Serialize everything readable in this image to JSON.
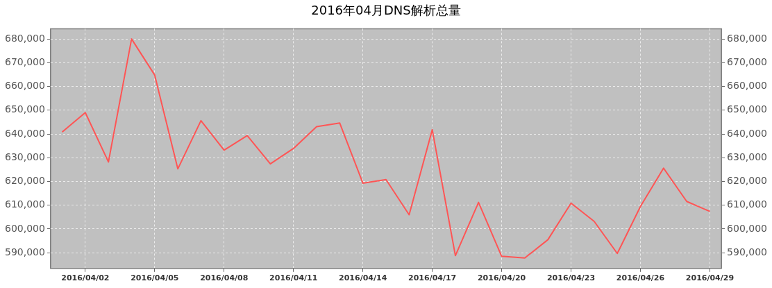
{
  "chart_data": {
    "type": "line",
    "title": "2016年04月DNS解析总量",
    "categories": [
      null,
      "2016/04/02",
      null,
      null,
      "2016/04/05",
      null,
      null,
      "2016/04/08",
      null,
      null,
      "2016/04/11",
      null,
      null,
      "2016/04/14",
      null,
      null,
      "2016/04/17",
      null,
      null,
      "2016/04/20",
      null,
      null,
      "2016/04/23",
      null,
      null,
      "2016/04/26",
      null,
      null,
      "2016/04/29"
    ],
    "series": [
      {
        "color": "#ff5555",
        "values": [
          640800,
          649000,
          628200,
          680000,
          664800,
          625300,
          645600,
          633200,
          639300,
          627400,
          633900,
          643100,
          644600,
          619300,
          620800,
          606000,
          641800,
          588800,
          611200,
          588500,
          587800,
          595500,
          610900,
          603200,
          589700,
          609500,
          625600,
          611600,
          607400
        ]
      }
    ],
    "ylim": [
      583400,
      684300
    ],
    "yticks": [
      {
        "value": 590000,
        "label": "590,000"
      },
      {
        "value": 600000,
        "label": "600,000"
      },
      {
        "value": 610000,
        "label": "610,000"
      },
      {
        "value": 620000,
        "label": "620,000"
      },
      {
        "value": 630000,
        "label": "630,000"
      },
      {
        "value": 640000,
        "label": "640,000"
      },
      {
        "value": 650000,
        "label": "650,000"
      },
      {
        "value": 660000,
        "label": "660,000"
      },
      {
        "value": 670000,
        "label": "670,000"
      },
      {
        "value": 680000,
        "label": "680,000"
      }
    ],
    "y2lim": [
      583400,
      684300
    ],
    "y2ticks": [
      {
        "value": 590000,
        "label": "590,000"
      },
      {
        "value": 600000,
        "label": "600,000"
      },
      {
        "value": 610000,
        "label": "610,000"
      },
      {
        "value": 620000,
        "label": "620,000"
      },
      {
        "value": 630000,
        "label": "630,000"
      },
      {
        "value": 640000,
        "label": "640,000"
      },
      {
        "value": 650000,
        "label": "650,000"
      },
      {
        "value": 660000,
        "label": "660,000"
      },
      {
        "value": 670000,
        "label": "670,000"
      },
      {
        "value": 680000,
        "label": "680,000"
      }
    ],
    "grid": true,
    "legend": false,
    "marker": "none",
    "line_style": "solid"
  }
}
